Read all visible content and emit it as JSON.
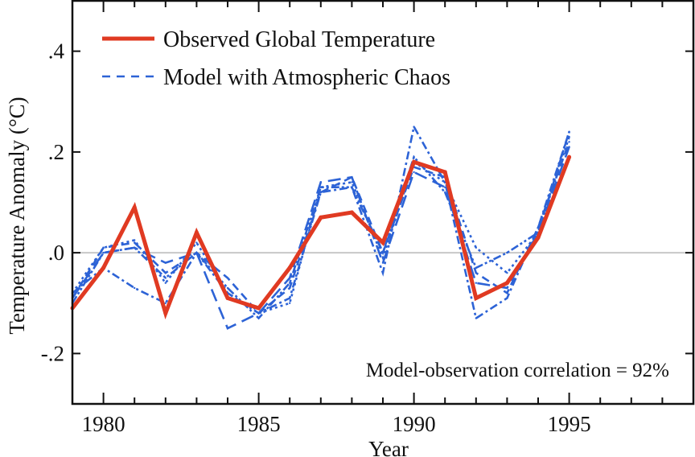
{
  "chart_data": {
    "type": "line",
    "title": "",
    "xlabel": "Year",
    "ylabel": "Temperature Anomaly (°C)",
    "xlim": [
      1979,
      1999
    ],
    "ylim": [
      -0.3,
      0.5
    ],
    "x_ticks_major": [
      1980,
      1985,
      1990,
      1995
    ],
    "x_tick_labels": [
      "1980",
      "1985",
      "1990",
      "1995"
    ],
    "y_ticks": [
      -0.2,
      0.0,
      0.2,
      0.4
    ],
    "y_tick_labels": [
      "-.2",
      ".0",
      ".2",
      ".4"
    ],
    "zero_line": true,
    "grid": false,
    "legend": {
      "placement": "top-left",
      "entries": [
        {
          "label": "Observed Global Temperature",
          "style": "solid",
          "color": "#e03a22"
        },
        {
          "label": "Model with Atmospheric Chaos",
          "style": "dashed",
          "color": "#2d63d6"
        }
      ]
    },
    "annotation": "Model-observation correlation = 92%",
    "x": [
      1979,
      1980,
      1981,
      1982,
      1983,
      1984,
      1985,
      1986,
      1987,
      1988,
      1989,
      1990,
      1991,
      1992,
      1993,
      1994,
      1995
    ],
    "series": [
      {
        "name": "Observed Global Temperature",
        "color": "#e03a22",
        "style": "solid",
        "values": [
          -0.11,
          -0.03,
          0.09,
          -0.12,
          0.04,
          -0.09,
          -0.11,
          -0.03,
          0.07,
          0.08,
          0.02,
          0.18,
          0.16,
          -0.09,
          -0.06,
          0.03,
          0.19
        ]
      },
      {
        "name": "Model run 1",
        "color": "#2d63d6",
        "style": "dashed",
        "values": [
          -0.09,
          0.01,
          0.02,
          -0.04,
          0.0,
          -0.05,
          -0.12,
          -0.07,
          0.12,
          0.15,
          0.0,
          0.17,
          0.15,
          -0.04,
          -0.08,
          0.05,
          0.22
        ]
      },
      {
        "name": "Model run 2",
        "color": "#2d63d6",
        "style": "dotted",
        "values": [
          -0.08,
          0.01,
          0.025,
          -0.06,
          0.02,
          -0.08,
          -0.12,
          -0.1,
          0.13,
          0.14,
          -0.01,
          0.18,
          0.14,
          0.01,
          -0.04,
          0.04,
          0.23
        ]
      },
      {
        "name": "Model run 3",
        "color": "#2d63d6",
        "style": "dash-dot",
        "values": [
          -0.08,
          -0.03,
          -0.07,
          -0.1,
          0.0,
          -0.08,
          -0.12,
          -0.09,
          0.12,
          0.13,
          -0.04,
          0.25,
          0.14,
          -0.13,
          -0.09,
          0.05,
          0.24
        ]
      },
      {
        "name": "Model run 4",
        "color": "#2d63d6",
        "style": "long-dash",
        "values": [
          -0.09,
          0.0,
          0.01,
          -0.02,
          0.0,
          -0.15,
          -0.12,
          -0.05,
          0.14,
          0.15,
          -0.02,
          0.16,
          0.13,
          -0.06,
          -0.07,
          0.04,
          0.21
        ]
      },
      {
        "name": "Model run 5",
        "color": "#2d63d6",
        "style": "dash-dot-dot",
        "values": [
          -0.1,
          0.0,
          0.01,
          -0.05,
          0.0,
          -0.07,
          -0.13,
          -0.06,
          0.13,
          0.13,
          0.0,
          0.19,
          0.12,
          -0.03,
          0.0,
          0.04,
          0.24
        ]
      }
    ]
  }
}
